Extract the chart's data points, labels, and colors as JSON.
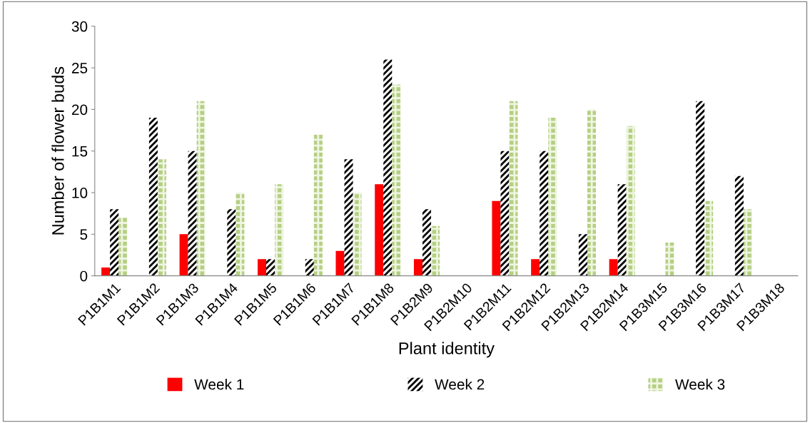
{
  "chart_data": {
    "type": "bar",
    "xlabel": "Plant identity",
    "ylabel": "Number of flower buds",
    "categories": [
      "P1B1M1",
      "P1B1M2",
      "P1B1M3",
      "P1B1M4",
      "P1B1M5",
      "P1B1M6",
      "P1B1M7",
      "P1B1M8",
      "P1B2M9",
      "P1B2M10",
      "P1B2M11",
      "P1B2M12",
      "P1B2M13",
      "P1B2M14",
      "P1B3M15",
      "P1B3M16",
      "P1B3M17",
      "P1B3M18"
    ],
    "series": [
      {
        "name": "Week 1",
        "color": "#ff0000",
        "values": [
          1,
          0,
          5,
          0,
          2,
          0,
          3,
          11,
          2,
          0,
          9,
          2,
          0,
          2,
          0,
          0,
          0,
          0
        ]
      },
      {
        "name": "Week 2",
        "color": "#000000",
        "values": [
          8,
          19,
          15,
          8,
          2,
          2,
          14,
          26,
          8,
          0,
          15,
          15,
          5,
          11,
          0,
          21,
          12,
          0
        ]
      },
      {
        "name": "Week 3",
        "color": "#b5cf83",
        "values": [
          7,
          14,
          21,
          10,
          11,
          17,
          10,
          23,
          6,
          0,
          21,
          19,
          20,
          18,
          4,
          9,
          8,
          0
        ]
      }
    ],
    "ylim": [
      0,
      30
    ],
    "yticks": [
      0,
      5,
      10,
      15,
      20,
      25,
      30
    ],
    "grid": false,
    "legend": "bottom"
  }
}
